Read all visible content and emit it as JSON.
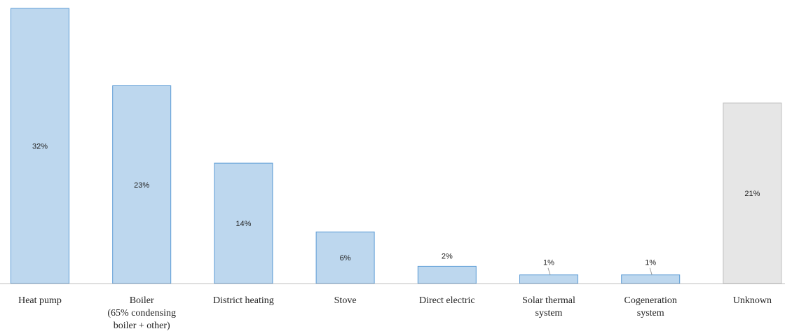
{
  "chart_data": {
    "type": "bar",
    "title": "",
    "xlabel": "",
    "ylabel": "",
    "categories": [
      [
        "Heat pump"
      ],
      [
        "Boiler",
        "(65% condensing",
        "boiler + other)"
      ],
      [
        "District heating"
      ],
      [
        "Stove"
      ],
      [
        "Direct electric"
      ],
      [
        "Solar thermal",
        "system"
      ],
      [
        "Cogeneration",
        "system"
      ],
      [
        "Unknown"
      ]
    ],
    "values": [
      32,
      23,
      14,
      6,
      2,
      1,
      1,
      21
    ],
    "value_labels": [
      "32%",
      "23%",
      "14%",
      "6%",
      "2%",
      "1%",
      "1%",
      "21%"
    ],
    "label_positions": [
      "inside",
      "inside",
      "inside",
      "inside",
      "above",
      "above-leader",
      "above-leader",
      "inside"
    ],
    "ylim": [
      0,
      32
    ],
    "grid": false,
    "colors": {
      "main_fill": "#bdd7ee",
      "main_stroke": "#5b9bd5",
      "unknown_fill": "#e6e6e6",
      "unknown_stroke": "#bfbfbf"
    }
  }
}
